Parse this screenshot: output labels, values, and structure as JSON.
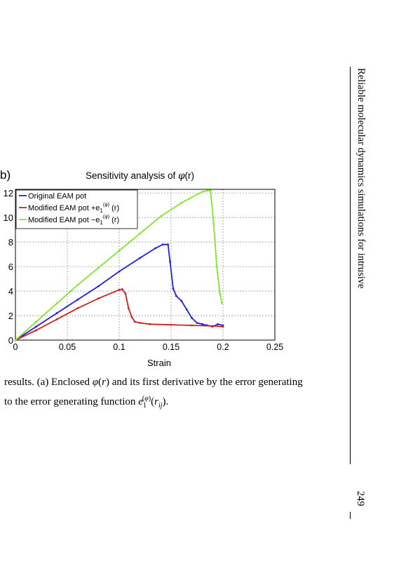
{
  "panel_label": "b)",
  "page": {
    "running_head": "Reliable molecular dynamics simulations for intrusive",
    "page_number": "249"
  },
  "caption": {
    "line1_pre": "results. (a) Enclosed ",
    "line1_mid": " and its first derivative by the error generating",
    "line2_pre": "to the error generating function ",
    "line2_post": "."
  },
  "chart_data": {
    "type": "line",
    "title": "Sensitivity analysis of φ(r)",
    "title_prefix": "Sensitivity analysis of ",
    "title_symbol": "φ",
    "title_suffix": "(r)",
    "xlabel": "Strain",
    "ylabel": "",
    "xlim": [
      0,
      0.25
    ],
    "ylim": [
      0,
      12.3
    ],
    "x_ticks": [
      "0",
      "0.05",
      "0.1",
      "0.15",
      "0.2",
      "0.25"
    ],
    "y_ticks": [
      "0",
      "2",
      "4",
      "6",
      "8",
      "10",
      "12"
    ],
    "grid": true,
    "legend_position": "top-left",
    "series": [
      {
        "name": "Original EAM pot",
        "legend_main": "Original EAM pot",
        "legend_sup": "",
        "legend_tail": "",
        "color": "#1f1fe0",
        "x": [
          0,
          0.02,
          0.04,
          0.06,
          0.08,
          0.1,
          0.12,
          0.135,
          0.142,
          0.147,
          0.149,
          0.152,
          0.155,
          0.16,
          0.165,
          0.17,
          0.175,
          0.18,
          0.185,
          0.19,
          0.195,
          0.2
        ],
        "y": [
          0,
          1.1,
          2.2,
          3.3,
          4.4,
          5.6,
          6.7,
          7.5,
          7.8,
          7.8,
          6.4,
          4.2,
          3.6,
          3.2,
          2.5,
          1.8,
          1.4,
          1.3,
          1.2,
          1.1,
          1.3,
          1.2
        ]
      },
      {
        "name": "Modified EAM pot +e1(φ) (r)",
        "legend_main": "Modified EAM pot +e",
        "legend_sub": "1",
        "legend_sup": "(φ)",
        "legend_tail": " (r)",
        "color": "#d21e1e",
        "x": [
          0,
          0.02,
          0.04,
          0.06,
          0.08,
          0.1,
          0.103,
          0.106,
          0.109,
          0.112,
          0.115,
          0.12,
          0.13,
          0.15,
          0.17,
          0.19,
          0.2
        ],
        "y": [
          0,
          0.8,
          1.7,
          2.6,
          3.4,
          4.1,
          4.15,
          3.8,
          2.6,
          1.9,
          1.5,
          1.4,
          1.3,
          1.25,
          1.2,
          1.15,
          1.1
        ]
      },
      {
        "name": "Modified EAM pot −e1(φ) (r)",
        "legend_main": "Modified EAM pot −e",
        "legend_sub": "1",
        "legend_sup": "(φ)",
        "legend_tail": " (r)",
        "color": "#7ee82a",
        "x": [
          0,
          0.02,
          0.04,
          0.06,
          0.08,
          0.1,
          0.12,
          0.14,
          0.16,
          0.18,
          0.185,
          0.188,
          0.191,
          0.194,
          0.197,
          0.199
        ],
        "y": [
          0,
          1.5,
          3.0,
          4.5,
          5.9,
          7.3,
          8.7,
          10.1,
          11.2,
          12.1,
          12.2,
          12.2,
          9.5,
          6.0,
          3.8,
          3.0
        ]
      }
    ]
  }
}
